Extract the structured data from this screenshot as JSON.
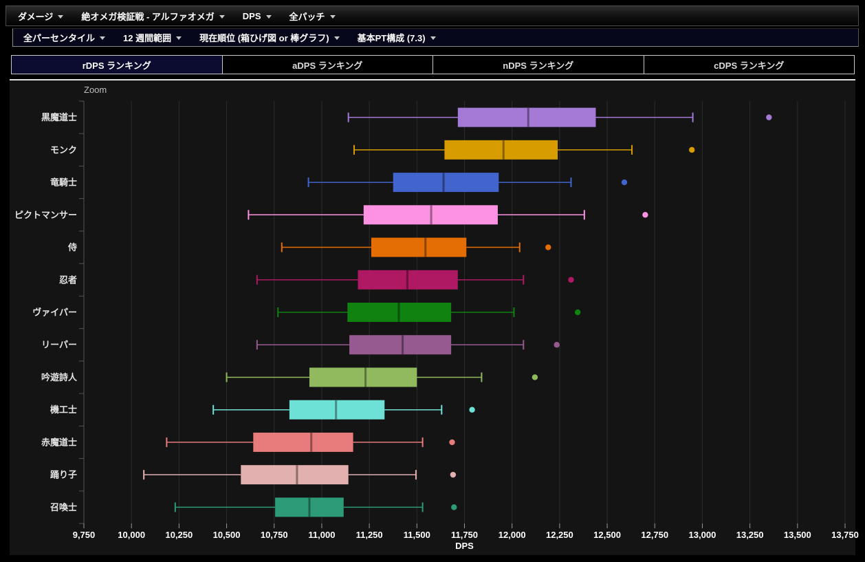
{
  "menubar_primary": {
    "items": [
      {
        "name": "damage-menu",
        "label": "ダメージ"
      },
      {
        "name": "encounter-menu",
        "label": "絶オメガ検証戦 - アルファオメガ"
      },
      {
        "name": "metric-menu",
        "label": "DPS"
      },
      {
        "name": "patch-menu",
        "label": "全パッチ"
      }
    ]
  },
  "menubar_secondary": {
    "items": [
      {
        "name": "percentile-menu",
        "label": "全パーセンタイル"
      },
      {
        "name": "timeframe-menu",
        "label": "12 週間範囲"
      },
      {
        "name": "chart-type-menu",
        "label": "現在順位 (箱ひげ図 or 棒グラフ)"
      },
      {
        "name": "party-comp-menu",
        "label": "基本PT構成 (7.3)"
      }
    ]
  },
  "tabs": {
    "items": [
      {
        "name": "tab-rdps",
        "label": "rDPS ランキング",
        "active": true
      },
      {
        "name": "tab-adps",
        "label": "aDPS ランキング",
        "active": false
      },
      {
        "name": "tab-ndps",
        "label": "nDPS ランキング",
        "active": false
      },
      {
        "name": "tab-cdps",
        "label": "cDPS ランキング",
        "active": false
      }
    ]
  },
  "chart": {
    "zoom_label": "Zoom"
  },
  "chart_data": {
    "type": "boxplot",
    "orientation": "horizontal",
    "title": "",
    "xlabel": "DPS",
    "ylabel": "",
    "xlim": [
      9750,
      13750
    ],
    "grid": true,
    "x_ticks": [
      9750,
      10000,
      10250,
      10500,
      10750,
      11000,
      11250,
      11500,
      11750,
      12000,
      12250,
      12500,
      12750,
      13000,
      13250,
      13500,
      13750
    ],
    "series": [
      {
        "name": "blackmage",
        "label": "黒魔道士",
        "color": "#a579d6",
        "min": 11140,
        "q1": 11715,
        "median": 12085,
        "q3": 12440,
        "max": 12950,
        "outliers": [
          13350
        ]
      },
      {
        "name": "monk",
        "label": "モンク",
        "color": "#d69c00",
        "min": 11170,
        "q1": 11645,
        "median": 11955,
        "q3": 12240,
        "max": 12630,
        "outliers": [
          12945
        ]
      },
      {
        "name": "dragoon",
        "label": "竜騎士",
        "color": "#4164cd",
        "min": 10930,
        "q1": 11375,
        "median": 11640,
        "q3": 11930,
        "max": 12310,
        "outliers": [
          12590
        ]
      },
      {
        "name": "pictomancer",
        "label": "ピクトマンサー",
        "color": "#fc92e1",
        "min": 10615,
        "q1": 11220,
        "median": 11575,
        "q3": 11925,
        "max": 12380,
        "outliers": [
          12700
        ]
      },
      {
        "name": "samurai",
        "label": "侍",
        "color": "#e46d04",
        "min": 10790,
        "q1": 11260,
        "median": 11545,
        "q3": 11760,
        "max": 12040,
        "outliers": [
          12190
        ]
      },
      {
        "name": "ninja",
        "label": "忍者",
        "color": "#af1964",
        "min": 10660,
        "q1": 11190,
        "median": 11450,
        "q3": 11715,
        "max": 12060,
        "outliers": [
          12310
        ]
      },
      {
        "name": "viper",
        "label": "ヴァイパー",
        "color": "#108210",
        "min": 10770,
        "q1": 11135,
        "median": 11405,
        "q3": 11680,
        "max": 12010,
        "outliers": [
          12345
        ]
      },
      {
        "name": "reaper",
        "label": "リーパー",
        "color": "#965a90",
        "min": 10660,
        "q1": 11145,
        "median": 11425,
        "q3": 11680,
        "max": 12060,
        "outliers": [
          12235
        ]
      },
      {
        "name": "bard",
        "label": "吟遊詩人",
        "color": "#91ba5e",
        "min": 10500,
        "q1": 10935,
        "median": 11230,
        "q3": 11500,
        "max": 11840,
        "outliers": [
          12120
        ]
      },
      {
        "name": "machinist",
        "label": "機工士",
        "color": "#6ee1d6",
        "min": 10430,
        "q1": 10830,
        "median": 11075,
        "q3": 11330,
        "max": 11630,
        "outliers": [
          11790
        ]
      },
      {
        "name": "redmage",
        "label": "赤魔道士",
        "color": "#e87b7b",
        "min": 10185,
        "q1": 10640,
        "median": 10945,
        "q3": 11165,
        "max": 11530,
        "outliers": [
          11685
        ]
      },
      {
        "name": "dancer",
        "label": "踊り子",
        "color": "#e2b0af",
        "min": 10065,
        "q1": 10575,
        "median": 10870,
        "q3": 11140,
        "max": 11495,
        "outliers": [
          11690
        ]
      },
      {
        "name": "summoner",
        "label": "召喚士",
        "color": "#2d9b78",
        "min": 10230,
        "q1": 10755,
        "median": 10935,
        "q3": 11115,
        "max": 11530,
        "outliers": [
          11695
        ]
      }
    ],
    "style": {
      "panel_bg": "#141414",
      "grid_color": "#2c2c2c",
      "axis_color": "#555555",
      "tick_color": "#999999",
      "label_color": "#ffffff",
      "job_label_color": "#e4e4e4"
    }
  }
}
